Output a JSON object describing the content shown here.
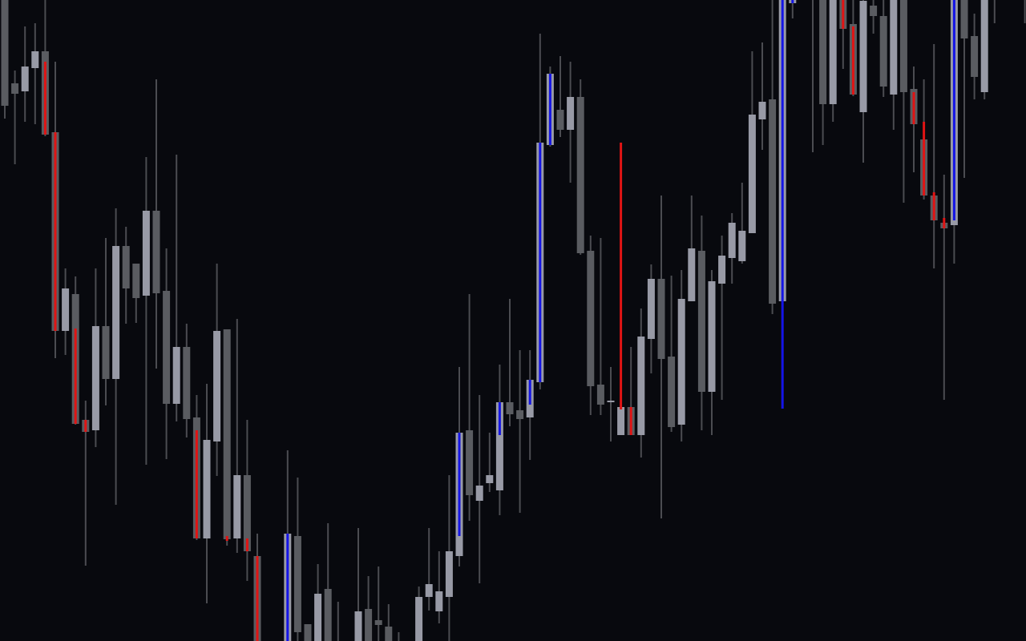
{
  "chart_data": {
    "type": "candlestick",
    "title": "",
    "xlabel": "",
    "ylabel": "",
    "ylim": [
      1000,
      1800
    ],
    "grid": false,
    "legend": "none",
    "colors": {
      "background": "#08090e",
      "bull_body": "#989aa6",
      "bear_body": "#5a5c61",
      "wick": "#4b4c51",
      "red_marker": "#e01414",
      "blue_marker": "#1414e6"
    },
    "candle_fields": [
      "open",
      "high",
      "low",
      "close"
    ],
    "candles": [
      {
        "o": 1810,
        "h": 1820,
        "l": 1652,
        "c": 1668
      },
      {
        "o": 1696,
        "h": 1712,
        "l": 1595,
        "c": 1683
      },
      {
        "o": 1686,
        "h": 1767,
        "l": 1648,
        "c": 1717
      },
      {
        "o": 1715,
        "h": 1771,
        "l": 1645,
        "c": 1736
      },
      {
        "o": 1736,
        "h": 1810,
        "l": 1630,
        "c": 1632,
        "m": {
          "color": "red",
          "from": 1723,
          "to": 1632
        }
      },
      {
        "o": 1635,
        "h": 1723,
        "l": 1353,
        "c": 1387,
        "m": {
          "color": "red",
          "from": 1635,
          "to": 1387
        }
      },
      {
        "o": 1387,
        "h": 1465,
        "l": 1357,
        "c": 1440
      },
      {
        "o": 1433,
        "h": 1455,
        "l": 1270,
        "c": 1271,
        "m": {
          "color": "red",
          "from": 1390,
          "to": 1271
        }
      },
      {
        "o": 1276,
        "h": 1300,
        "l": 1094,
        "c": 1261,
        "m": {
          "color": "red",
          "from": 1276,
          "to": 1261
        }
      },
      {
        "o": 1263,
        "h": 1465,
        "l": 1242,
        "c": 1393
      },
      {
        "o": 1393,
        "h": 1503,
        "l": 1294,
        "c": 1327
      },
      {
        "o": 1327,
        "h": 1540,
        "l": 1170,
        "c": 1493
      },
      {
        "o": 1493,
        "h": 1517,
        "l": 1396,
        "c": 1440
      },
      {
        "o": 1471,
        "h": 1471,
        "l": 1397,
        "c": 1428
      },
      {
        "o": 1431,
        "h": 1604,
        "l": 1220,
        "c": 1537
      },
      {
        "o": 1537,
        "h": 1701,
        "l": 1340,
        "c": 1434
      },
      {
        "o": 1437,
        "h": 1490,
        "l": 1227,
        "c": 1296
      },
      {
        "o": 1296,
        "h": 1607,
        "l": 1274,
        "c": 1367
      },
      {
        "o": 1367,
        "h": 1396,
        "l": 1254,
        "c": 1277
      },
      {
        "o": 1279,
        "h": 1307,
        "l": 1126,
        "c": 1128,
        "m": {
          "color": "red",
          "from": 1263,
          "to": 1128
        }
      },
      {
        "o": 1128,
        "h": 1321,
        "l": 1047,
        "c": 1251
      },
      {
        "o": 1249,
        "h": 1471,
        "l": 1206,
        "c": 1387
      },
      {
        "o": 1389,
        "h": 1389,
        "l": 1119,
        "c": 1127,
        "m": {
          "color": "red",
          "from": 1131,
          "to": 1125
        }
      },
      {
        "o": 1128,
        "h": 1402,
        "l": 1110,
        "c": 1207
      },
      {
        "o": 1207,
        "h": 1276,
        "l": 1075,
        "c": 1112,
        "m": {
          "color": "red",
          "from": 1128,
          "to": 1112
        }
      },
      {
        "o": 1106,
        "h": 1134,
        "l": 980,
        "c": 990,
        "m": {
          "color": "red",
          "from": 1106,
          "to": 980
        }
      },
      null,
      null,
      {
        "o": 990,
        "h": 1238,
        "l": 980,
        "c": 1134,
        "m": {
          "color": "blue",
          "from": 1134,
          "to": 980
        }
      },
      {
        "o": 1131,
        "h": 1204,
        "l": 980,
        "c": 1011
      },
      {
        "o": 1021,
        "h": 1021,
        "l": 980,
        "c": 990
      },
      {
        "o": 990,
        "h": 1096,
        "l": 980,
        "c": 1059
      },
      {
        "o": 1065,
        "h": 1147,
        "l": 980,
        "c": 990
      },
      {
        "o": 985,
        "h": 1049,
        "l": 980,
        "c": 990
      },
      null,
      {
        "o": 990,
        "h": 1141,
        "l": 980,
        "c": 1037
      },
      {
        "o": 1040,
        "h": 1081,
        "l": 980,
        "c": 990
      },
      {
        "o": 1026,
        "h": 1093,
        "l": 980,
        "c": 1020
      },
      {
        "o": 1018,
        "h": 1046,
        "l": 980,
        "c": 990
      },
      {
        "o": 985,
        "h": 1011,
        "l": 975,
        "c": 990
      },
      null,
      {
        "o": 990,
        "h": 1068,
        "l": 980,
        "c": 1055
      },
      {
        "o": 1055,
        "h": 1141,
        "l": 1038,
        "c": 1071
      },
      {
        "o": 1037,
        "h": 1112,
        "l": 1022,
        "c": 1062
      },
      {
        "o": 1055,
        "h": 1207,
        "l": 1000,
        "c": 1112
      },
      {
        "o": 1106,
        "h": 1342,
        "l": 1093,
        "c": 1260,
        "m": {
          "color": "blue",
          "from": 1260,
          "to": 1131
        }
      },
      {
        "o": 1263,
        "h": 1433,
        "l": 1150,
        "c": 1182
      },
      {
        "o": 1175,
        "h": 1307,
        "l": 1072,
        "c": 1194
      },
      {
        "o": 1197,
        "h": 1260,
        "l": 1186,
        "c": 1207
      },
      {
        "o": 1188,
        "h": 1345,
        "l": 1157,
        "c": 1298,
        "m": {
          "color": "blue",
          "from": 1298,
          "to": 1257
        }
      },
      {
        "o": 1298,
        "h": 1427,
        "l": 1268,
        "c": 1283
      },
      {
        "o": 1288,
        "h": 1363,
        "l": 1160,
        "c": 1277
      },
      {
        "o": 1279,
        "h": 1363,
        "l": 1226,
        "c": 1326,
        "m": {
          "color": "blue",
          "from": 1326,
          "to": 1295
        }
      },
      {
        "o": 1323,
        "h": 1758,
        "l": 1314,
        "c": 1622,
        "m": {
          "color": "blue",
          "from": 1622,
          "to": 1323
        }
      },
      {
        "o": 1619,
        "h": 1717,
        "l": 1617,
        "c": 1708,
        "m": {
          "color": "blue",
          "from": 1708,
          "to": 1619
        }
      },
      {
        "o": 1663,
        "h": 1730,
        "l": 1629,
        "c": 1638
      },
      {
        "o": 1638,
        "h": 1723,
        "l": 1572,
        "c": 1679
      },
      {
        "o": 1679,
        "h": 1701,
        "l": 1482,
        "c": 1484
      },
      {
        "o": 1487,
        "h": 1506,
        "l": 1282,
        "c": 1318
      },
      {
        "o": 1320,
        "h": 1503,
        "l": 1282,
        "c": 1295
      },
      {
        "o": 1300,
        "h": 1342,
        "l": 1249,
        "c": 1300
      },
      {
        "o": 1257,
        "h": 1292,
        "l": 1257,
        "c": 1292,
        "m": {
          "color": "red",
          "from": 1622,
          "to": 1289
        }
      },
      {
        "o": 1292,
        "h": 1367,
        "l": 1257,
        "c": 1257,
        "m": {
          "color": "red",
          "from": 1292,
          "to": 1257
        }
      },
      {
        "o": 1257,
        "h": 1415,
        "l": 1229,
        "c": 1380
      },
      {
        "o": 1377,
        "h": 1470,
        "l": 1334,
        "c": 1452
      },
      {
        "o": 1452,
        "h": 1556,
        "l": 1153,
        "c": 1352
      },
      {
        "o": 1355,
        "h": 1456,
        "l": 1261,
        "c": 1267
      },
      {
        "o": 1270,
        "h": 1463,
        "l": 1249,
        "c": 1427
      },
      {
        "o": 1424,
        "h": 1556,
        "l": 1424,
        "c": 1490
      },
      {
        "o": 1487,
        "h": 1531,
        "l": 1263,
        "c": 1311
      },
      {
        "o": 1311,
        "h": 1463,
        "l": 1257,
        "c": 1449
      },
      {
        "o": 1446,
        "h": 1506,
        "l": 1301,
        "c": 1481
      },
      {
        "o": 1478,
        "h": 1534,
        "l": 1446,
        "c": 1522
      },
      {
        "o": 1474,
        "h": 1572,
        "l": 1471,
        "c": 1512
      },
      {
        "o": 1509,
        "h": 1736,
        "l": 1509,
        "c": 1657
      },
      {
        "o": 1651,
        "h": 1747,
        "l": 1613,
        "c": 1673
      },
      {
        "o": 1676,
        "h": 1810,
        "l": 1408,
        "c": 1421
      },
      {
        "o": 1424,
        "h": 1820,
        "l": 1424,
        "c": 1810,
        "m": {
          "color": "blue",
          "from": 1810,
          "to": 1290
        }
      },
      {
        "o": 1796,
        "h": 1820,
        "l": 1777,
        "c": 1810,
        "m": {
          "color": "blue",
          "from": 1810,
          "to": 1796
        }
      },
      null,
      {
        "o": 1820,
        "h": 1830,
        "l": 1610,
        "c": 1825
      },
      {
        "o": 1810,
        "h": 1820,
        "l": 1619,
        "c": 1670
      },
      {
        "o": 1670,
        "h": 1820,
        "l": 1648,
        "c": 1810
      },
      {
        "o": 1810,
        "h": 1820,
        "l": 1714,
        "c": 1764,
        "m": {
          "color": "red",
          "from": 1810,
          "to": 1764
        }
      },
      {
        "o": 1770,
        "h": 1800,
        "l": 1680,
        "c": 1682,
        "m": {
          "color": "red",
          "from": 1767,
          "to": 1682
        }
      },
      {
        "o": 1660,
        "h": 1820,
        "l": 1597,
        "c": 1799
      },
      {
        "o": 1793,
        "h": 1820,
        "l": 1758,
        "c": 1780
      },
      {
        "o": 1780,
        "h": 1820,
        "l": 1679,
        "c": 1692
      },
      {
        "o": 1682,
        "h": 1820,
        "l": 1638,
        "c": 1810
      },
      {
        "o": 1810,
        "h": 1820,
        "l": 1547,
        "c": 1685
      },
      {
        "o": 1689,
        "h": 1717,
        "l": 1585,
        "c": 1645,
        "m": {
          "color": "red",
          "from": 1685,
          "to": 1645
        }
      },
      {
        "o": 1626,
        "h": 1701,
        "l": 1551,
        "c": 1556,
        "m": {
          "color": "red",
          "from": 1648,
          "to": 1556
        }
      },
      {
        "o": 1556,
        "h": 1745,
        "l": 1465,
        "c": 1525,
        "m": {
          "color": "red",
          "from": 1560,
          "to": 1525
        }
      },
      {
        "o": 1522,
        "h": 1582,
        "l": 1301,
        "c": 1515,
        "m": {
          "color": "red",
          "from": 1528,
          "to": 1515
        }
      },
      {
        "o": 1519,
        "h": 1820,
        "l": 1471,
        "c": 1810,
        "m": {
          "color": "blue",
          "from": 1810,
          "to": 1525
        }
      },
      {
        "o": 1810,
        "h": 1820,
        "l": 1578,
        "c": 1752
      },
      {
        "o": 1755,
        "h": 1783,
        "l": 1676,
        "c": 1704
      },
      {
        "o": 1685,
        "h": 1820,
        "l": 1676,
        "c": 1810
      },
      {
        "o": 1820,
        "h": 1830,
        "l": 1771,
        "c": 1825
      },
      null,
      null,
      {
        "o": 1820,
        "h": 1830,
        "l": 1771,
        "c": 1825
      }
    ]
  }
}
